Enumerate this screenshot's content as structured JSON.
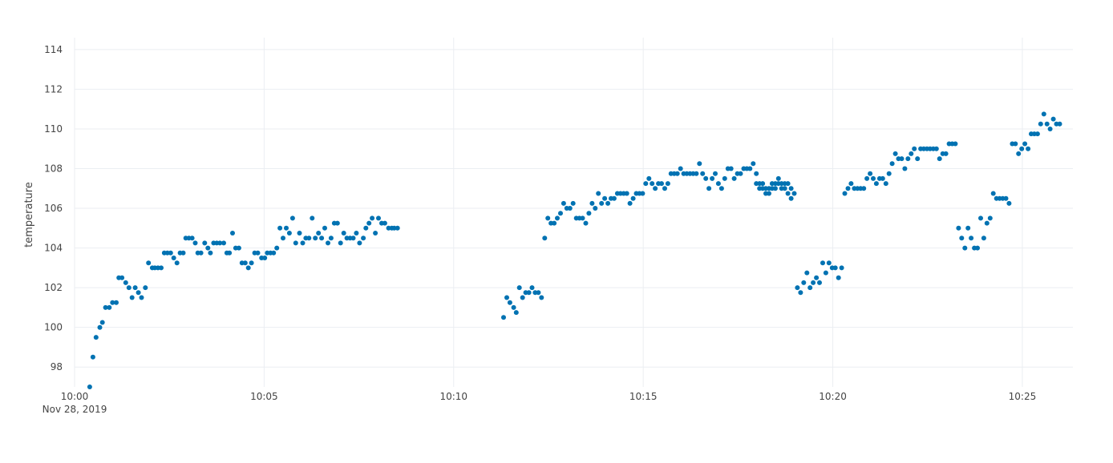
{
  "chart_data": {
    "type": "scatter",
    "title": "",
    "xlabel": "",
    "ylabel": "temperature",
    "x_start_label": "Nov 28, 2019",
    "x_range": [
      "2019-11-28 10:00",
      "2019-11-28 10:26:20"
    ],
    "x_ticks": [
      "10:00",
      "10:05",
      "10:10",
      "10:15",
      "10:20",
      "10:25"
    ],
    "ylim": [
      97,
      114.6
    ],
    "y_ticks": [
      98,
      100,
      102,
      104,
      106,
      108,
      110,
      112,
      114
    ],
    "grid": true,
    "marker_color": "#0072b2",
    "series": [
      {
        "x": [
          "10:00:24",
          "10:00:29",
          "10:00:34",
          "10:00:40",
          "10:00:44",
          "10:00:49",
          "10:00:55",
          "10:01:00",
          "10:01:06",
          "10:01:10",
          "10:01:15",
          "10:01:21",
          "10:01:26",
          "10:01:31",
          "10:01:36",
          "10:01:41",
          "10:01:46",
          "10:01:52",
          "10:01:57",
          "10:02:03",
          "10:02:07",
          "10:02:12",
          "10:02:17",
          "10:02:22",
          "10:02:27",
          "10:02:32",
          "10:02:37",
          "10:02:42",
          "10:02:47",
          "10:02:52",
          "10:02:56",
          "10:03:01",
          "10:03:06",
          "10:03:11",
          "10:03:15",
          "10:03:20",
          "10:03:26",
          "10:03:31",
          "10:03:35",
          "10:03:40",
          "10:03:45",
          "10:03:50",
          "10:03:56",
          "10:04:01",
          "10:04:05",
          "10:04:10",
          "10:04:15",
          "10:04:20",
          "10:04:25",
          "10:04:30",
          "10:04:35",
          "10:04:40",
          "10:04:45",
          "10:04:50",
          "10:04:56",
          "10:05:01",
          "10:05:05",
          "10:05:10",
          "10:05:15",
          "10:05:20",
          "10:05:25",
          "10:05:30",
          "10:05:35",
          "10:05:40",
          "10:05:45",
          "10:05:50",
          "10:05:56",
          "10:06:01",
          "10:06:06",
          "10:06:11",
          "10:06:16",
          "10:06:21",
          "10:06:26",
          "10:06:31",
          "10:06:36",
          "10:06:41",
          "10:06:46",
          "10:06:51",
          "10:06:56",
          "10:07:01",
          "10:07:06",
          "10:07:11",
          "10:07:16",
          "10:07:21",
          "10:07:26",
          "10:07:31",
          "10:07:37",
          "10:07:41",
          "10:07:46",
          "10:07:51",
          "10:07:56",
          "10:08:01",
          "10:08:06",
          "10:08:11",
          "10:08:17",
          "10:08:22",
          "10:08:26",
          "10:08:31"
        ],
        "y": [
          97.0,
          98.5,
          99.5,
          100.0,
          100.25,
          101.0,
          101.0,
          101.25,
          101.25,
          102.5,
          102.5,
          102.25,
          102.0,
          101.5,
          102.0,
          101.75,
          101.5,
          102.0,
          103.25,
          103.0,
          103.0,
          103.0,
          103.0,
          103.75,
          103.75,
          103.75,
          103.5,
          103.25,
          103.75,
          103.75,
          104.5,
          104.5,
          104.5,
          104.25,
          103.75,
          103.75,
          104.25,
          104.0,
          103.75,
          104.25,
          104.25,
          104.25,
          104.25,
          103.75,
          103.75,
          104.75,
          104.0,
          104.0,
          103.25,
          103.25,
          103.0,
          103.25,
          103.75,
          103.75,
          103.5,
          103.5,
          103.75,
          103.75,
          103.75,
          104.0,
          105.0,
          104.5,
          105.0,
          104.75,
          105.5,
          104.25,
          104.75,
          104.25,
          104.5,
          104.5,
          105.5,
          104.5,
          104.75,
          104.5,
          105.0,
          104.25,
          104.5,
          105.25,
          105.25,
          104.25,
          104.75,
          104.5,
          104.5,
          104.5,
          104.75,
          104.25,
          104.5,
          105.0,
          105.25,
          105.5,
          104.75,
          105.5,
          105.25,
          105.25,
          105.0,
          105.0,
          105.0,
          105.0
        ]
      },
      {
        "x": [
          "10:11:19",
          "10:11:24",
          "10:11:29",
          "10:11:35",
          "10:11:39",
          "10:11:44",
          "10:11:49",
          "10:11:54",
          "10:11:59",
          "10:12:04",
          "10:12:09",
          "10:12:14",
          "10:12:19",
          "10:12:24",
          "10:12:29",
          "10:12:34",
          "10:12:39",
          "10:12:44",
          "10:12:49",
          "10:12:54",
          "10:12:59",
          "10:13:04",
          "10:13:09",
          "10:13:14",
          "10:13:19",
          "10:13:24",
          "10:13:29",
          "10:13:34",
          "10:13:39",
          "10:13:44",
          "10:13:49",
          "10:13:54",
          "10:13:59",
          "10:14:04",
          "10:14:09",
          "10:14:14",
          "10:14:19",
          "10:14:24",
          "10:14:29",
          "10:14:34",
          "10:14:39",
          "10:14:44",
          "10:14:49",
          "10:14:54",
          "10:14:59",
          "10:15:04",
          "10:15:09",
          "10:15:14",
          "10:15:19",
          "10:15:24",
          "10:15:29",
          "10:15:34",
          "10:15:39",
          "10:15:44",
          "10:15:49",
          "10:15:54",
          "10:15:59",
          "10:16:04",
          "10:16:09",
          "10:16:14",
          "10:16:19",
          "10:16:24",
          "10:16:29",
          "10:16:34",
          "10:16:39",
          "10:16:44",
          "10:16:49",
          "10:16:54",
          "10:16:59",
          "10:17:04",
          "10:17:09",
          "10:17:14",
          "10:17:19",
          "10:17:24",
          "10:17:29",
          "10:17:34",
          "10:17:39",
          "10:17:44",
          "10:17:49",
          "10:17:54",
          "10:17:59",
          "10:18:04",
          "10:18:09",
          "10:18:14",
          "10:18:19",
          "10:18:24",
          "10:18:29",
          "10:18:34",
          "10:18:39",
          "10:18:44",
          "10:18:49",
          "10:18:54"
        ],
        "y": [
          100.5,
          101.5,
          101.25,
          101.0,
          100.75,
          102.0,
          101.5,
          101.75,
          101.75,
          102.0,
          101.75,
          101.75,
          101.5,
          104.5,
          105.5,
          105.25,
          105.25,
          105.5,
          105.75,
          106.25,
          106.0,
          106.0,
          106.25,
          105.5,
          105.5,
          105.5,
          105.25,
          105.75,
          106.25,
          106.0,
          106.75,
          106.25,
          106.5,
          106.25,
          106.5,
          106.5,
          106.75,
          106.75,
          106.75,
          106.75,
          106.25,
          106.5,
          106.75,
          106.75,
          106.75,
          107.25,
          107.5,
          107.25,
          107.0,
          107.25,
          107.25,
          107.0,
          107.25,
          107.75,
          107.75,
          107.75,
          108.0,
          107.75,
          107.75,
          107.75,
          107.75,
          107.75,
          108.25,
          107.75,
          107.5,
          107.0,
          107.5,
          107.75,
          107.25,
          107.0,
          107.5,
          108.0,
          108.0,
          107.5,
          107.75,
          107.75,
          108.0,
          108.0,
          108.0,
          108.25,
          107.75,
          107.25,
          107.25,
          107.0,
          106.75,
          107.0,
          107.25,
          107.25,
          107.25,
          107.25,
          107.25,
          106.5
        ]
      },
      {
        "x": [
          "10:17:59",
          "10:18:04",
          "10:18:09",
          "10:18:14",
          "10:18:19",
          "10:18:24",
          "10:18:29",
          "10:18:34",
          "10:18:39",
          "10:18:44",
          "10:18:49",
          "10:18:54",
          "10:18:59",
          "10:19:04",
          "10:19:09",
          "10:19:14",
          "10:19:19",
          "10:19:24",
          "10:19:29",
          "10:19:34",
          "10:19:39",
          "10:19:44",
          "10:19:49",
          "10:19:54",
          "10:19:59",
          "10:20:04",
          "10:20:09",
          "10:20:14",
          "10:20:19",
          "10:20:24",
          "10:20:29",
          "10:20:34",
          "10:20:39",
          "10:20:44",
          "10:20:49",
          "10:20:54",
          "10:20:59",
          "10:21:04",
          "10:21:09",
          "10:21:14",
          "10:21:19",
          "10:21:24",
          "10:21:29",
          "10:21:34",
          "10:21:39",
          "10:21:44",
          "10:21:49",
          "10:21:54",
          "10:21:59",
          "10:22:04",
          "10:22:09",
          "10:22:14",
          "10:22:19",
          "10:22:24",
          "10:22:29",
          "10:22:34",
          "10:22:39",
          "10:22:44",
          "10:22:49",
          "10:22:54",
          "10:22:59",
          "10:23:04",
          "10:23:09",
          "10:23:14",
          "10:23:19",
          "10:23:24",
          "10:23:29",
          "10:23:34",
          "10:23:39",
          "10:23:44",
          "10:23:49",
          "10:23:54",
          "10:23:59",
          "10:24:04",
          "10:24:09",
          "10:24:14",
          "10:24:19",
          "10:24:24",
          "10:24:29",
          "10:24:34",
          "10:24:39",
          "10:24:44",
          "10:24:49",
          "10:24:54",
          "10:24:59",
          "10:25:04",
          "10:25:09",
          "10:25:14",
          "10:25:19",
          "10:25:24",
          "10:25:29",
          "10:25:34",
          "10:25:39",
          "10:25:44",
          "10:25:49",
          "10:25:54",
          "10:25:59"
        ],
        "y": [
          107.25,
          107.0,
          107.0,
          106.75,
          107.0,
          107.25,
          107.0,
          107.5,
          107.0,
          107.0,
          106.75,
          107.0,
          106.75,
          102.0,
          101.75,
          102.25,
          102.75,
          102.0,
          102.25,
          102.5,
          102.25,
          103.25,
          102.75,
          103.25,
          103.0,
          103.0,
          102.5,
          103.0,
          106.75,
          107.0,
          107.25,
          107.0,
          107.0,
          107.0,
          107.0,
          107.5,
          107.75,
          107.5,
          107.25,
          107.5,
          107.5,
          107.25,
          107.75,
          108.25,
          108.75,
          108.5,
          108.5,
          108.0,
          108.5,
          108.75,
          109.0,
          108.5,
          109.0,
          109.0,
          109.0,
          109.0,
          109.0,
          109.0,
          108.5,
          108.75,
          108.75,
          109.25,
          109.25,
          109.25,
          105.0,
          104.5,
          104.0,
          105.0,
          104.5,
          104.0,
          104.0,
          105.5,
          104.5,
          105.25,
          105.5,
          106.75,
          106.5,
          106.5,
          106.5,
          106.5,
          106.25,
          109.25,
          109.25,
          108.75,
          109.0,
          109.25,
          109.0,
          109.75,
          109.75,
          109.75,
          110.25,
          110.75,
          110.25,
          110.0,
          110.5,
          110.25,
          110.25
        ]
      }
    ]
  }
}
